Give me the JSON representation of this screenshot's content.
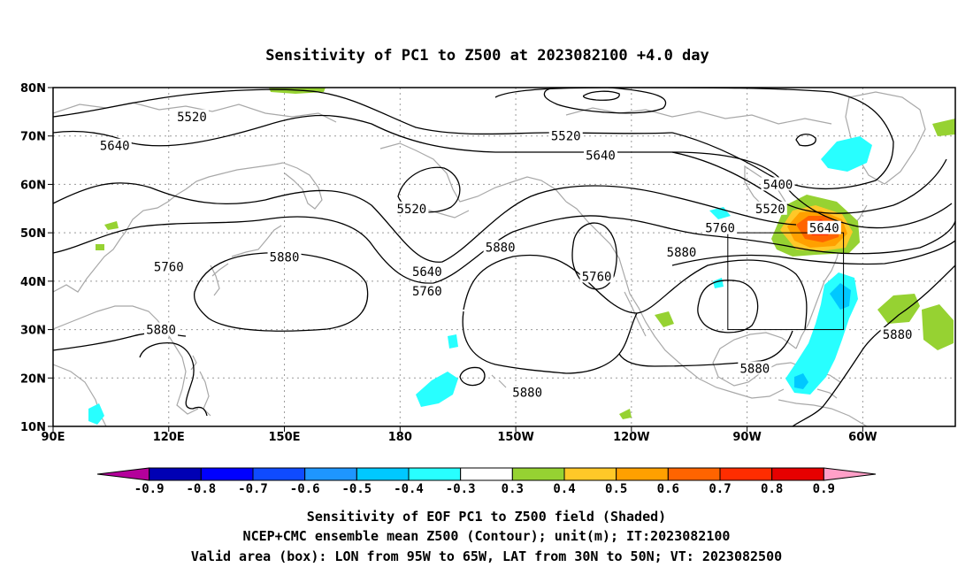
{
  "title": "Sensitivity of PC1 to Z500 at 2023082100 +4.0 day",
  "map": {
    "lon_ticks": [
      {
        "lon": 90,
        "label": "90E"
      },
      {
        "lon": 120,
        "label": "120E"
      },
      {
        "lon": 150,
        "label": "150E"
      },
      {
        "lon": 180,
        "label": "180"
      },
      {
        "lon": 210,
        "label": "150W"
      },
      {
        "lon": 240,
        "label": "120W"
      },
      {
        "lon": 270,
        "label": "90W"
      },
      {
        "lon": 300,
        "label": "60W"
      }
    ],
    "lat_ticks": [
      {
        "lat": 80,
        "label": "80N"
      },
      {
        "lat": 70,
        "label": "70N"
      },
      {
        "lat": 60,
        "label": "60N"
      },
      {
        "lat": 50,
        "label": "50N"
      },
      {
        "lat": 40,
        "label": "40N"
      },
      {
        "lat": 30,
        "label": "30N"
      },
      {
        "lat": 20,
        "label": "20N"
      },
      {
        "lat": 10,
        "label": "10N"
      }
    ],
    "contour_labels": [
      {
        "text": "5520",
        "lon": 126,
        "lat": 74
      },
      {
        "text": "5640",
        "lon": 106,
        "lat": 68
      },
      {
        "text": "5520",
        "lon": 223,
        "lat": 70
      },
      {
        "text": "5640",
        "lon": 232,
        "lat": 66
      },
      {
        "text": "5520",
        "lon": 183,
        "lat": 55
      },
      {
        "text": "5400",
        "lon": 278,
        "lat": 60
      },
      {
        "text": "5520",
        "lon": 276,
        "lat": 55
      },
      {
        "text": "5760",
        "lon": 263,
        "lat": 51
      },
      {
        "text": "5640",
        "lon": 290,
        "lat": 51
      },
      {
        "text": "5760",
        "lon": 120,
        "lat": 43
      },
      {
        "text": "5880",
        "lon": 150,
        "lat": 45
      },
      {
        "text": "5640",
        "lon": 187,
        "lat": 42
      },
      {
        "text": "5760",
        "lon": 187,
        "lat": 38
      },
      {
        "text": "5880",
        "lon": 206,
        "lat": 47
      },
      {
        "text": "5880",
        "lon": 253,
        "lat": 46
      },
      {
        "text": "5760",
        "lon": 231,
        "lat": 41
      },
      {
        "text": "5880",
        "lon": 118,
        "lat": 30
      },
      {
        "text": "5880",
        "lon": 272,
        "lat": 22
      },
      {
        "text": "5880",
        "lon": 213,
        "lat": 17
      },
      {
        "text": "5880",
        "lon": 309,
        "lat": 29
      }
    ],
    "valid_box": {
      "lon_min": 265,
      "lon_max": 295,
      "lat_min": 30,
      "lat_max": 50
    }
  },
  "colorbar": {
    "colors": [
      "#b4009b",
      "#0000b4",
      "#0000ff",
      "#0f4bff",
      "#1e96ff",
      "#00c8ff",
      "#28ffff",
      "#ffffff",
      "#96d232",
      "#ffc828",
      "#ffa000",
      "#ff6400",
      "#ff2d00",
      "#e60000",
      "#ffa0c8"
    ],
    "labels": [
      "-0.9",
      "-0.8",
      "-0.7",
      "-0.6",
      "-0.5",
      "-0.4",
      "-0.3",
      "0.3",
      "0.4",
      "0.5",
      "0.6",
      "0.7",
      "0.8",
      "0.9"
    ]
  },
  "captions": [
    "Sensitivity of EOF PC1 to Z500 field (Shaded)",
    "NCEP+CMC ensemble mean Z500 (Contour); unit(m); IT:2023082100",
    "Valid area (box): LON from 95W to 65W, LAT from 30N to 50N; VT: 2023082500"
  ]
}
